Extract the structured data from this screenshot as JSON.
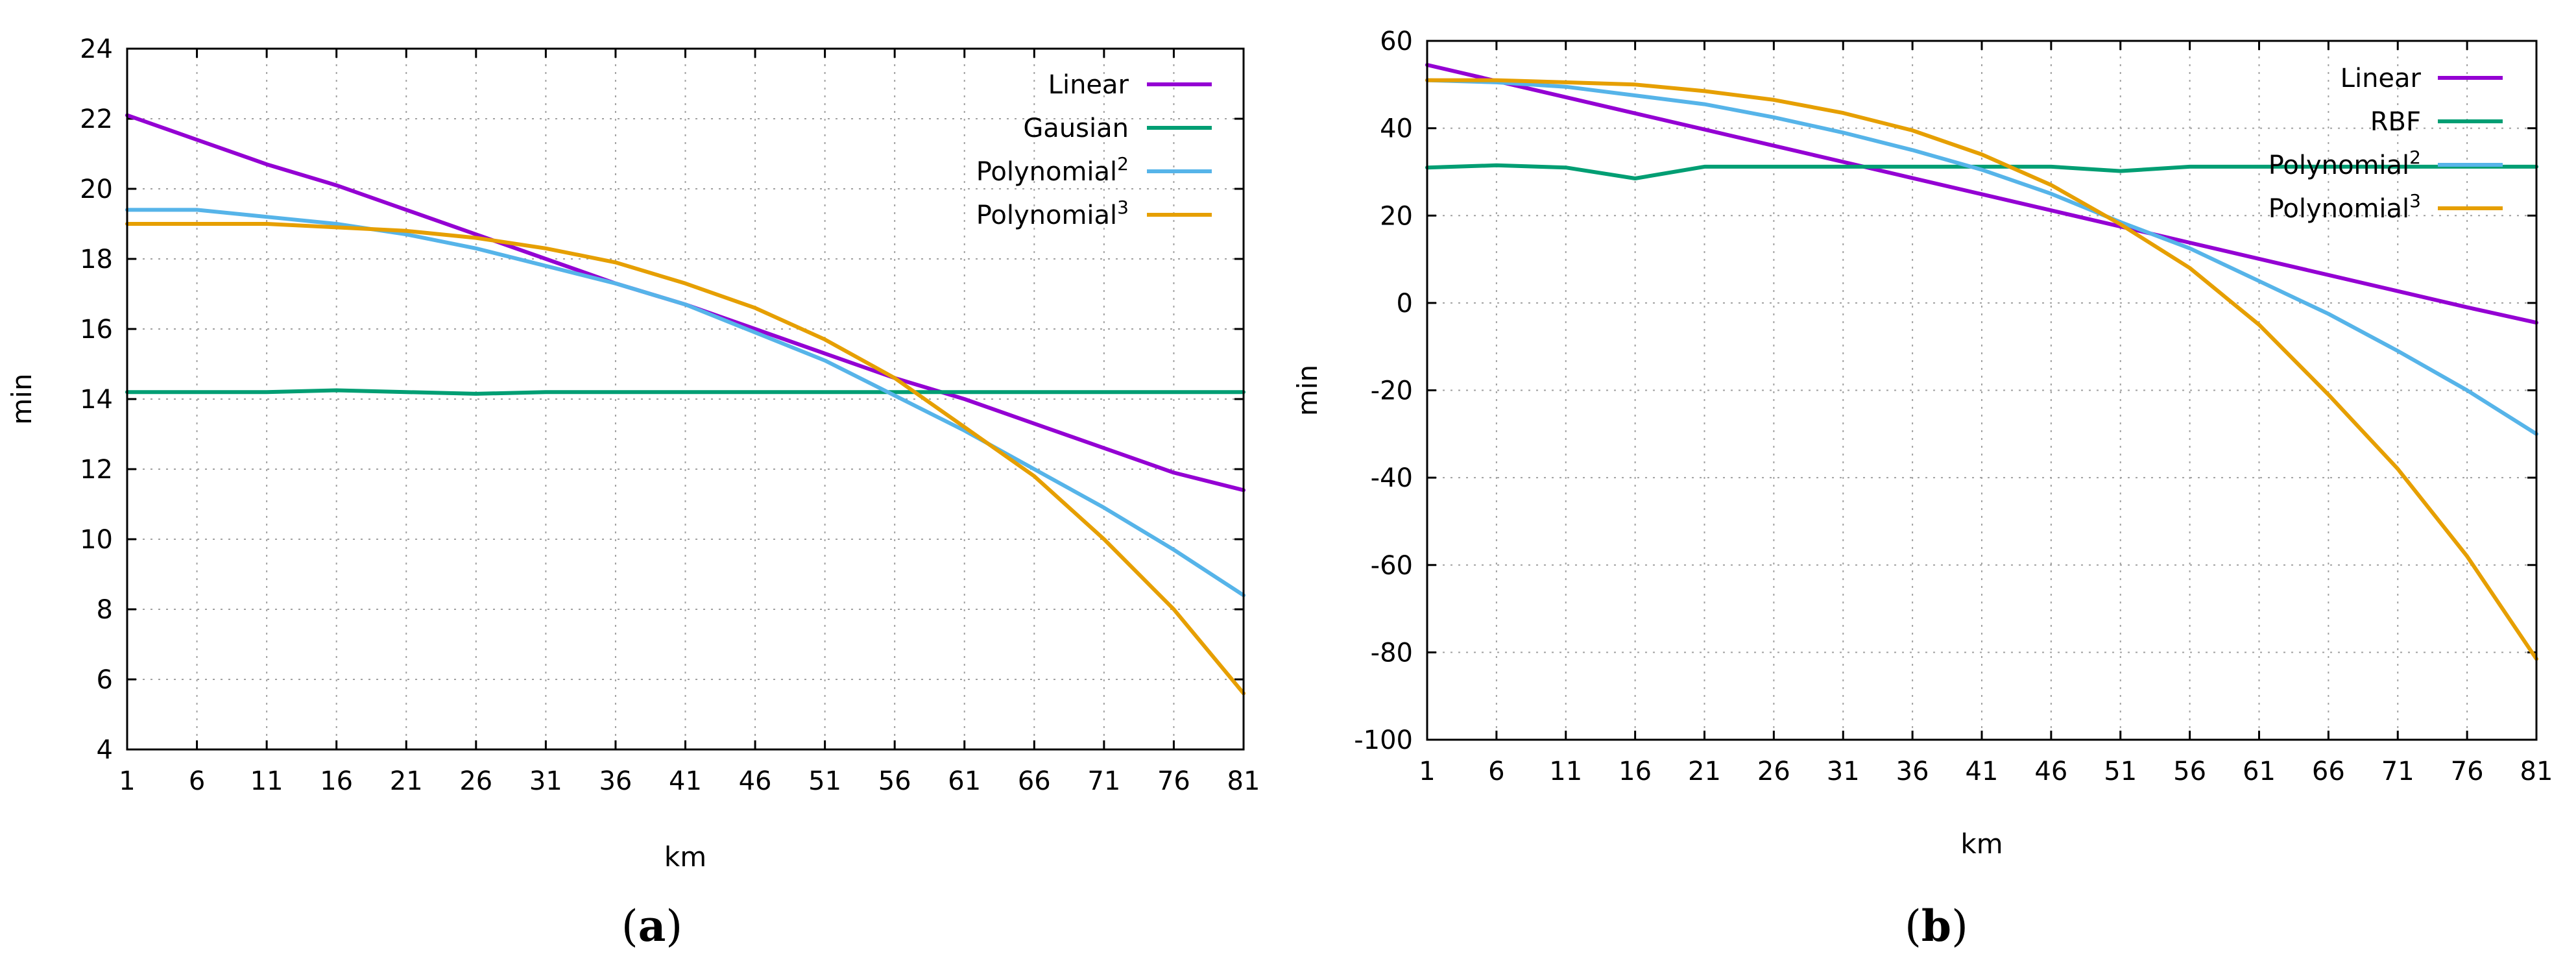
{
  "chart_data": [
    {
      "type": "line",
      "caption_letter": "a",
      "xlabel": "km",
      "ylabel": "min",
      "xlim": [
        1,
        81
      ],
      "ylim": [
        4,
        24
      ],
      "x_ticks": [
        1,
        6,
        11,
        16,
        21,
        26,
        31,
        36,
        41,
        46,
        51,
        56,
        61,
        66,
        71,
        76,
        81
      ],
      "y_ticks": [
        4,
        6,
        8,
        10,
        12,
        14,
        16,
        18,
        20,
        22,
        24
      ],
      "legend_position": "top-right",
      "x": [
        1,
        6,
        11,
        16,
        21,
        26,
        31,
        36,
        41,
        46,
        51,
        56,
        61,
        66,
        71,
        76,
        81
      ],
      "series": [
        {
          "name": "Linear",
          "sup": "",
          "color": "#9400d3",
          "values": [
            22.1,
            21.4,
            20.7,
            20.1,
            19.4,
            18.7,
            18.0,
            17.3,
            16.7,
            16.0,
            15.3,
            14.6,
            14.0,
            13.3,
            12.6,
            11.9,
            11.4
          ]
        },
        {
          "name": "Gausian",
          "sup": "",
          "color": "#009e73",
          "values": [
            14.2,
            14.2,
            14.2,
            14.25,
            14.2,
            14.15,
            14.2,
            14.2,
            14.2,
            14.2,
            14.2,
            14.2,
            14.2,
            14.2,
            14.2,
            14.2,
            14.2
          ]
        },
        {
          "name": "Polynomial",
          "sup": "2",
          "color": "#56b4e9",
          "values": [
            19.4,
            19.4,
            19.2,
            19.0,
            18.7,
            18.3,
            17.8,
            17.3,
            16.7,
            15.9,
            15.1,
            14.1,
            13.1,
            12.0,
            10.9,
            9.7,
            8.4
          ]
        },
        {
          "name": "Polynomial",
          "sup": "3",
          "color": "#e69f00",
          "values": [
            19.0,
            19.0,
            19.0,
            18.9,
            18.8,
            18.6,
            18.3,
            17.9,
            17.3,
            16.6,
            15.7,
            14.6,
            13.2,
            11.8,
            10.0,
            8.0,
            5.6
          ]
        }
      ]
    },
    {
      "type": "line",
      "caption_letter": "b",
      "xlabel": "km",
      "ylabel": "min",
      "xlim": [
        1,
        81
      ],
      "ylim": [
        -100,
        60
      ],
      "x_ticks": [
        1,
        6,
        11,
        16,
        21,
        26,
        31,
        36,
        41,
        46,
        51,
        56,
        61,
        66,
        71,
        76,
        81
      ],
      "y_ticks": [
        -100,
        -80,
        -60,
        -40,
        -20,
        0,
        20,
        40,
        60
      ],
      "legend_position": "top-right",
      "x": [
        1,
        6,
        11,
        16,
        21,
        26,
        31,
        36,
        41,
        46,
        51,
        56,
        61,
        66,
        71,
        76,
        81
      ],
      "series": [
        {
          "name": "Linear",
          "sup": "",
          "color": "#9400d3",
          "values": [
            54.5,
            50.8,
            47.1,
            43.4,
            39.7,
            36.0,
            32.3,
            28.6,
            24.9,
            21.2,
            17.5,
            13.8,
            10.1,
            6.4,
            2.7,
            -1.0,
            -4.5
          ]
        },
        {
          "name": "RBF",
          "sup": "",
          "color": "#009e73",
          "values": [
            31.0,
            31.5,
            31.0,
            28.5,
            31.2,
            31.2,
            31.2,
            31.2,
            31.2,
            31.2,
            30.2,
            31.2,
            31.2,
            31.2,
            31.2,
            31.2,
            31.2
          ]
        },
        {
          "name": "Polynomial",
          "sup": "2",
          "color": "#56b4e9",
          "values": [
            51.0,
            50.5,
            49.5,
            47.5,
            45.5,
            42.5,
            39.0,
            35.0,
            30.5,
            25.0,
            18.5,
            12.5,
            5.0,
            -2.5,
            -11.0,
            -20.0,
            -30.0
          ]
        },
        {
          "name": "Polynomial",
          "sup": "3",
          "color": "#e69f00",
          "values": [
            51.0,
            51.0,
            50.5,
            50.0,
            48.5,
            46.5,
            43.5,
            39.5,
            34.0,
            27.0,
            18.0,
            8.0,
            -5.0,
            -21.0,
            -38.0,
            -58.0,
            -81.5
          ]
        }
      ]
    }
  ]
}
